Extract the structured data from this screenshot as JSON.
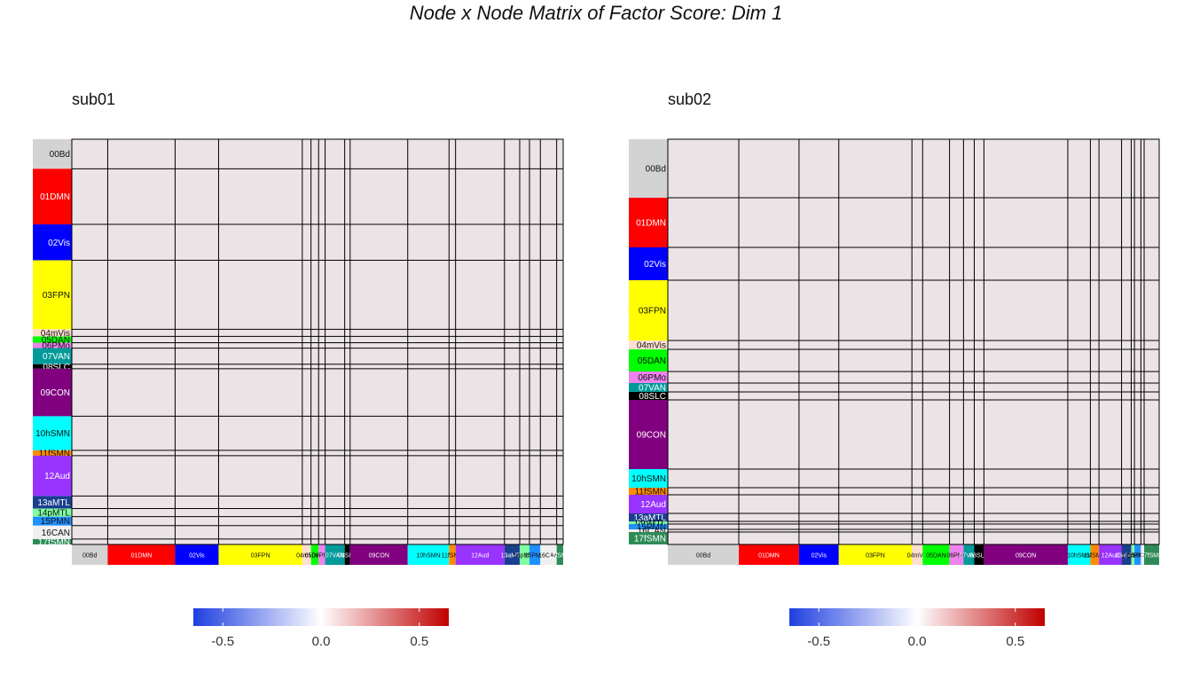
{
  "title": "Node x Node Matrix of Factor Score: Dim 1",
  "chart_data": [
    {
      "type": "heatmap",
      "title": "sub01",
      "fill_value": 0.0,
      "colorbar": {
        "ticks": [
          "-0.5",
          "0.0",
          "0.5"
        ],
        "tick_values": [
          -0.5,
          0.0,
          0.5
        ],
        "range": [
          -0.65,
          0.65
        ],
        "colors": [
          "#1f3fe0",
          "#ffffff",
          "#c00000"
        ]
      },
      "networks": [
        {
          "label": "00Bd",
          "size": 33,
          "color": "#d3d3d3"
        },
        {
          "label": "01DMN",
          "size": 62,
          "color": "#ff0000"
        },
        {
          "label": "02Vis",
          "size": 40,
          "color": "#0000ff"
        },
        {
          "label": "03FPN",
          "size": 77,
          "color": "#ffff00"
        },
        {
          "label": "04mVis",
          "size": 8,
          "color": "#ffdfcf"
        },
        {
          "label": "05DAN",
          "size": 7,
          "color": "#00ff00"
        },
        {
          "label": "06PMo",
          "size": 6,
          "color": "#ee82ee"
        },
        {
          "label": "07VAN",
          "size": 18,
          "color": "#009a9a"
        },
        {
          "label": "08SLC",
          "size": 5,
          "color": "#000000"
        },
        {
          "label": "09CON",
          "size": 53,
          "color": "#800080"
        },
        {
          "label": "10hSMN",
          "size": 38,
          "color": "#00ffff"
        },
        {
          "label": "11fSMN",
          "size": 6,
          "color": "#ff8c00"
        },
        {
          "label": "12Aud",
          "size": 45,
          "color": "#9933ff"
        },
        {
          "label": "13aMTL",
          "size": 14,
          "color": "#1a3f8f"
        },
        {
          "label": "14pMTL",
          "size": 9,
          "color": "#7fffa0"
        },
        {
          "label": "15PMN",
          "size": 10,
          "color": "#1e90ff"
        },
        {
          "label": "16CAN",
          "size": 15,
          "color": "#f0f0f0"
        },
        {
          "label": "17fSMN",
          "size": 6,
          "color": "#2e8b57"
        }
      ]
    },
    {
      "type": "heatmap",
      "title": "sub02",
      "fill_value": 0.0,
      "colorbar": {
        "ticks": [
          "-0.5",
          "0.0",
          "0.5"
        ],
        "tick_values": [
          -0.5,
          0.0,
          0.5
        ],
        "range": [
          -0.65,
          0.65
        ],
        "colors": [
          "#1f3fe0",
          "#ffffff",
          "#c00000"
        ]
      },
      "networks": [
        {
          "label": "00Bd",
          "size": 66,
          "color": "#d3d3d3"
        },
        {
          "label": "01DMN",
          "size": 56,
          "color": "#ff0000"
        },
        {
          "label": "02Vis",
          "size": 37,
          "color": "#0000ff"
        },
        {
          "label": "03FPN",
          "size": 68,
          "color": "#ffff00"
        },
        {
          "label": "04mVis",
          "size": 10,
          "color": "#ffdfcf"
        },
        {
          "label": "05DAN",
          "size": 25,
          "color": "#00ff00"
        },
        {
          "label": "06PMo",
          "size": 13,
          "color": "#ee82ee"
        },
        {
          "label": "07VAN",
          "size": 10,
          "color": "#009a9a"
        },
        {
          "label": "08SLC",
          "size": 9,
          "color": "#000000"
        },
        {
          "label": "09CON",
          "size": 78,
          "color": "#800080"
        },
        {
          "label": "10hSMN",
          "size": 21,
          "color": "#00ffff"
        },
        {
          "label": "11fSMN",
          "size": 8,
          "color": "#ff8c00"
        },
        {
          "label": "12Aud",
          "size": 21,
          "color": "#9933ff"
        },
        {
          "label": "13aMTL",
          "size": 9,
          "color": "#1a3f8f"
        },
        {
          "label": "14pMTL",
          "size": 3,
          "color": "#7fffa0"
        },
        {
          "label": "15PMN",
          "size": 6,
          "color": "#1e90ff"
        },
        {
          "label": "16CAN",
          "size": 3,
          "color": "#f0f0f0"
        },
        {
          "label": "17fSMN",
          "size": 14,
          "color": "#2e8b57"
        }
      ]
    }
  ]
}
